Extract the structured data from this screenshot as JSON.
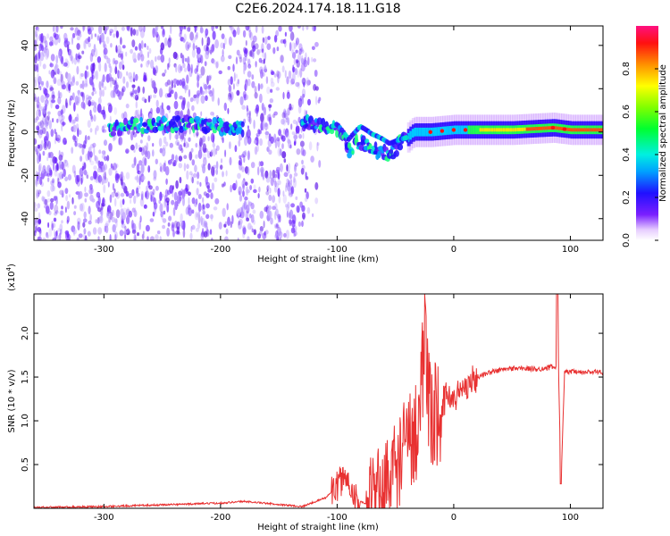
{
  "title": "C2E6.2024.174.18.11.G18",
  "chart_data": [
    {
      "type": "heatmap",
      "xlabel": "Height of straight line (km)",
      "ylabel": "Frequency (Hz)",
      "xlim": [
        -360,
        128
      ],
      "ylim": [
        -50,
        49
      ],
      "xticks": [
        -300,
        -200,
        -100,
        0,
        100
      ],
      "yticks": [
        -40,
        -20,
        0,
        20,
        40
      ],
      "colorbar": {
        "label": "Normalized spectral amplitude",
        "range": [
          0,
          1
        ],
        "ticks": [
          0.0,
          0.2,
          0.4,
          0.6,
          0.8
        ],
        "tick_labels": [
          "0.0",
          "0.2",
          "0.4",
          "0.6",
          "0.8"
        ]
      },
      "signal_center_hz": [
        [
          -290,
          2
        ],
        [
          -250,
          4
        ],
        [
          -210,
          3
        ],
        [
          -180,
          2
        ],
        [
          -120,
          4
        ],
        [
          -100,
          2
        ],
        [
          -90,
          -8
        ],
        [
          -80,
          -4
        ],
        [
          -70,
          -8
        ],
        [
          -55,
          -10
        ],
        [
          -45,
          -5
        ],
        [
          -35,
          0
        ],
        [
          -20,
          0
        ],
        [
          0,
          1
        ],
        [
          50,
          1
        ],
        [
          85,
          2
        ],
        [
          100,
          1
        ],
        [
          128,
          1
        ]
      ],
      "grid": false
    },
    {
      "type": "line",
      "xlabel": "Height of straight line (km)",
      "ylabel": "SNR (10 * v/v)",
      "y_scale_label": "(x10",
      "y_scale_exp": "4",
      "y_scale_close": ")",
      "xlim": [
        -360,
        128
      ],
      "ylim": [
        0,
        2.45
      ],
      "xticks": [
        -300,
        -200,
        -100,
        0,
        100
      ],
      "yticks": [
        0.5,
        1.0,
        1.5,
        2.0
      ],
      "ytick_labels": [
        "0.5",
        "1.0",
        "1.5",
        "2.0"
      ],
      "color": "#e83030",
      "series": [
        {
          "x": [
            -360,
            -300,
            -250,
            -200,
            -180,
            -130,
            -110,
            -100,
            -95,
            -90,
            -85,
            -80,
            -75,
            -70,
            -65,
            -60,
            -55,
            -50,
            -45,
            -40,
            -35,
            -30,
            -27,
            -25,
            -22,
            -20,
            -15,
            -10,
            -5,
            0,
            10,
            20,
            30,
            40,
            50,
            60,
            70,
            80,
            85,
            88,
            89,
            90,
            92,
            95,
            100,
            110,
            120,
            128
          ],
          "y": [
            0.01,
            0.02,
            0.04,
            0.06,
            0.08,
            0.02,
            0.12,
            0.25,
            0.35,
            0.3,
            0.15,
            0.08,
            0.04,
            0.1,
            0.18,
            0.25,
            0.35,
            0.45,
            0.6,
            0.75,
            0.85,
            1.0,
            1.6,
            1.9,
            1.2,
            1.0,
            1.1,
            1.2,
            1.3,
            1.25,
            1.4,
            1.5,
            1.55,
            1.58,
            1.6,
            1.6,
            1.59,
            1.6,
            1.62,
            1.6,
            2.45,
            1.5,
            0.28,
            1.55,
            1.56,
            1.55,
            1.56,
            1.55
          ]
        }
      ],
      "grid": false
    }
  ]
}
